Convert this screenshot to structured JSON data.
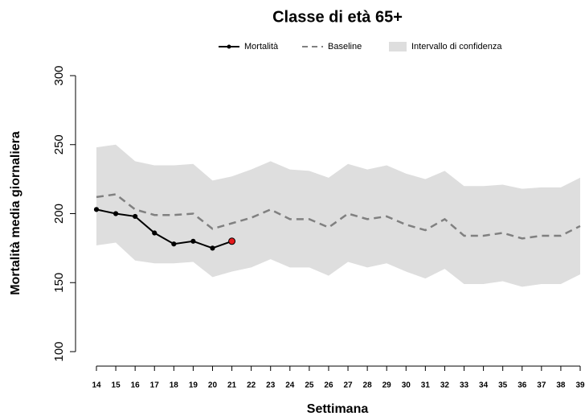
{
  "chart_data": {
    "type": "line",
    "title": "Classe di età 65+",
    "x_label": "Settimana",
    "y_label": "Mortalità media giornaliera",
    "x": [
      14,
      15,
      16,
      17,
      18,
      19,
      20,
      21,
      22,
      23,
      24,
      25,
      26,
      27,
      28,
      29,
      30,
      31,
      32,
      33,
      34,
      35,
      36,
      37,
      38,
      39
    ],
    "xlim": [
      14,
      39
    ],
    "xticks": [
      14,
      15,
      16,
      17,
      18,
      19,
      20,
      21,
      22,
      23,
      24,
      25,
      26,
      27,
      28,
      29,
      30,
      31,
      32,
      33,
      34,
      35,
      36,
      37,
      38,
      39
    ],
    "ylim": [
      100,
      300
    ],
    "yticks": [
      100,
      150,
      200,
      250,
      300
    ],
    "series": [
      {
        "name": "Mortalità",
        "color": "#000000",
        "last_marker_color": "#e41a1c",
        "values": [
          203,
          200,
          198,
          186,
          178,
          180,
          175,
          180,
          null,
          null,
          null,
          null,
          null,
          null,
          null,
          null,
          null,
          null,
          null,
          null,
          null,
          null,
          null,
          null,
          null,
          null
        ]
      },
      {
        "name": "Baseline",
        "color": "#808080",
        "dashed": true,
        "values": [
          212,
          214,
          203,
          199,
          199,
          200,
          189,
          193,
          197,
          203,
          196,
          196,
          190,
          200,
          196,
          198,
          192,
          188,
          196,
          184,
          184,
          186,
          182,
          184,
          184,
          191
        ]
      },
      {
        "name": "Intervallo di confidenza",
        "color": "#dedede",
        "band": true,
        "upper": [
          248,
          250,
          238,
          235,
          235,
          236,
          224,
          227,
          232,
          238,
          232,
          231,
          226,
          236,
          232,
          235,
          229,
          225,
          231,
          220,
          220,
          221,
          218,
          219,
          219,
          226
        ],
        "lower": [
          177,
          179,
          166,
          164,
          164,
          165,
          154,
          158,
          161,
          167,
          161,
          161,
          155,
          165,
          161,
          164,
          158,
          153,
          160,
          149,
          149,
          151,
          147,
          149,
          149,
          156
        ]
      }
    ]
  }
}
